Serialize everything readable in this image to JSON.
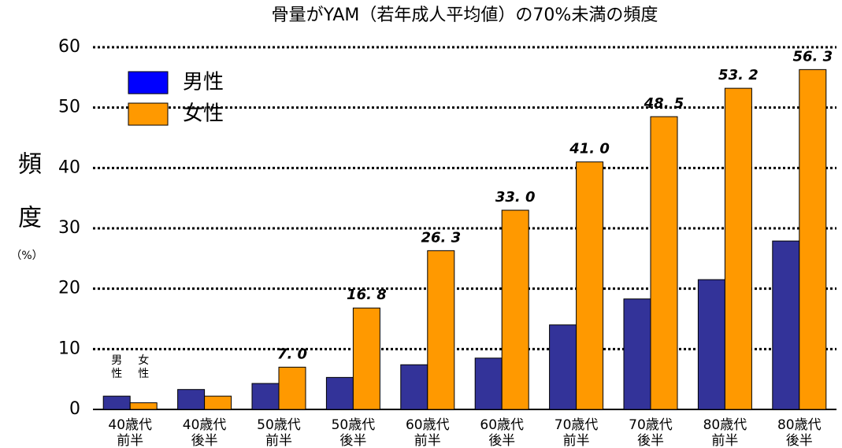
{
  "chart_data": {
    "type": "bar",
    "title": "骨量がYAM（若年成人平均値）の70%未満の頻度",
    "ylabel": [
      "頻",
      "度",
      "（%）"
    ],
    "categories": [
      [
        "40歳代",
        "前半"
      ],
      [
        "40歳代",
        "後半"
      ],
      [
        "50歳代",
        "前半"
      ],
      [
        "50歳代",
        "後半"
      ],
      [
        "60歳代",
        "前半"
      ],
      [
        "60歳代",
        "後半"
      ],
      [
        "70歳代",
        "前半"
      ],
      [
        "70歳代",
        "後半"
      ],
      [
        "80歳代",
        "前半"
      ],
      [
        "80歳代",
        "後半"
      ]
    ],
    "series": [
      {
        "name": "男性",
        "color": "#333399",
        "legend_color": "#0000ff",
        "values": [
          2.2,
          3.3,
          4.3,
          5.3,
          7.4,
          8.5,
          14.0,
          18.3,
          21.5,
          27.9
        ]
      },
      {
        "name": "女性",
        "color": "#ff9900",
        "legend_color": "#ff9900",
        "values": [
          1.1,
          2.2,
          7.0,
          16.8,
          26.3,
          33.0,
          41.0,
          48.5,
          53.2,
          56.3
        ],
        "value_labels": [
          null,
          null,
          "7. 0",
          "16. 8",
          "26. 3",
          "33. 0",
          "41. 0",
          "48. 5",
          "53. 2",
          "56. 3"
        ]
      }
    ],
    "annotations": [
      [
        "男",
        "性"
      ],
      [
        "女",
        "性"
      ]
    ],
    "ylim": [
      0,
      60
    ],
    "yticks": [
      0,
      10,
      20,
      30,
      40,
      50,
      60
    ],
    "grid": true
  }
}
